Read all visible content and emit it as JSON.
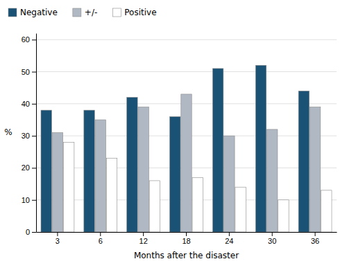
{
  "chart_data": {
    "type": "bar",
    "categories": [
      "3",
      "6",
      "12",
      "18",
      "24",
      "30",
      "36"
    ],
    "series": [
      {
        "name": "Negative",
        "color": "#1a5276",
        "values": [
          38,
          38,
          42,
          36,
          51,
          52,
          44
        ]
      },
      {
        "name": "+/-",
        "color": "#b0b8c4",
        "values": [
          31,
          35,
          39,
          43,
          30,
          32,
          39
        ]
      },
      {
        "name": "Positive",
        "color": "#ffffff",
        "values": [
          28,
          23,
          16,
          17,
          14,
          10,
          13
        ]
      }
    ],
    "xlabel": "Months after the disaster",
    "ylabel": "%",
    "ylim": [
      0,
      62
    ],
    "yticks": [
      0,
      10,
      20,
      30,
      40,
      50,
      60
    ],
    "grid": true,
    "legend": "upper left"
  }
}
